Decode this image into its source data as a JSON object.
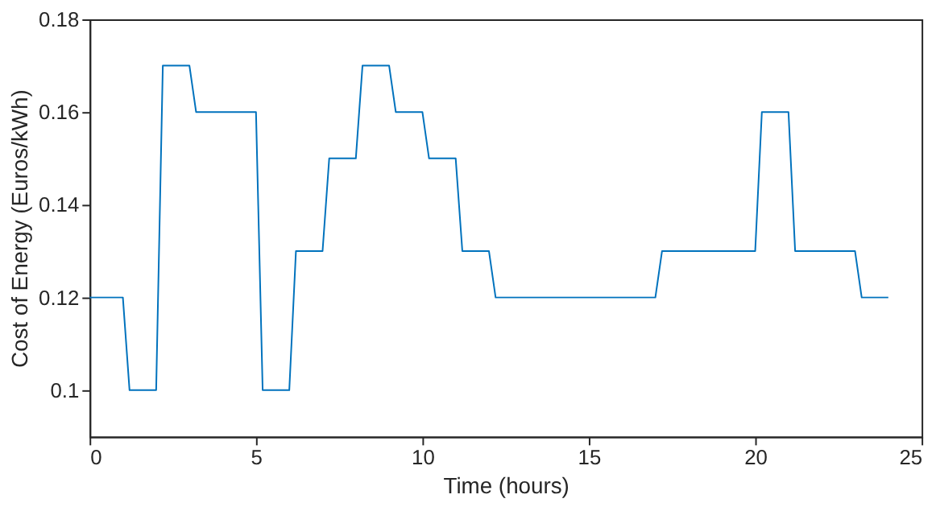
{
  "chart_data": {
    "type": "line",
    "xlabel": "Time (hours)",
    "ylabel": "Cost of Energy (Euros/kWh)",
    "x": [
      0,
      1,
      1.2,
      2,
      2.2,
      3,
      3.2,
      5,
      5.2,
      6,
      6.2,
      7,
      7.2,
      8,
      8.2,
      9,
      9.2,
      10,
      10.2,
      11,
      11.2,
      12,
      12.2,
      17,
      17.2,
      20,
      20.2,
      21,
      21.2,
      23,
      23.2,
      24
    ],
    "series": [
      {
        "color": "#0072bd",
        "values": [
          0.12,
          0.12,
          0.1,
          0.1,
          0.17,
          0.17,
          0.16,
          0.16,
          0.1,
          0.1,
          0.13,
          0.13,
          0.15,
          0.15,
          0.17,
          0.17,
          0.16,
          0.16,
          0.15,
          0.15,
          0.13,
          0.13,
          0.12,
          0.12,
          0.13,
          0.13,
          0.16,
          0.16,
          0.13,
          0.13,
          0.12,
          0.12
        ]
      }
    ],
    "xlim": [
      0,
      25
    ],
    "xticks": [
      0,
      5,
      10,
      15,
      20,
      25
    ],
    "ylim": [
      0.09,
      0.18
    ],
    "yticks": [
      0.1,
      0.12,
      0.14,
      0.16,
      0.18
    ],
    "grid": false,
    "marker": "none",
    "line_style": "solid"
  }
}
